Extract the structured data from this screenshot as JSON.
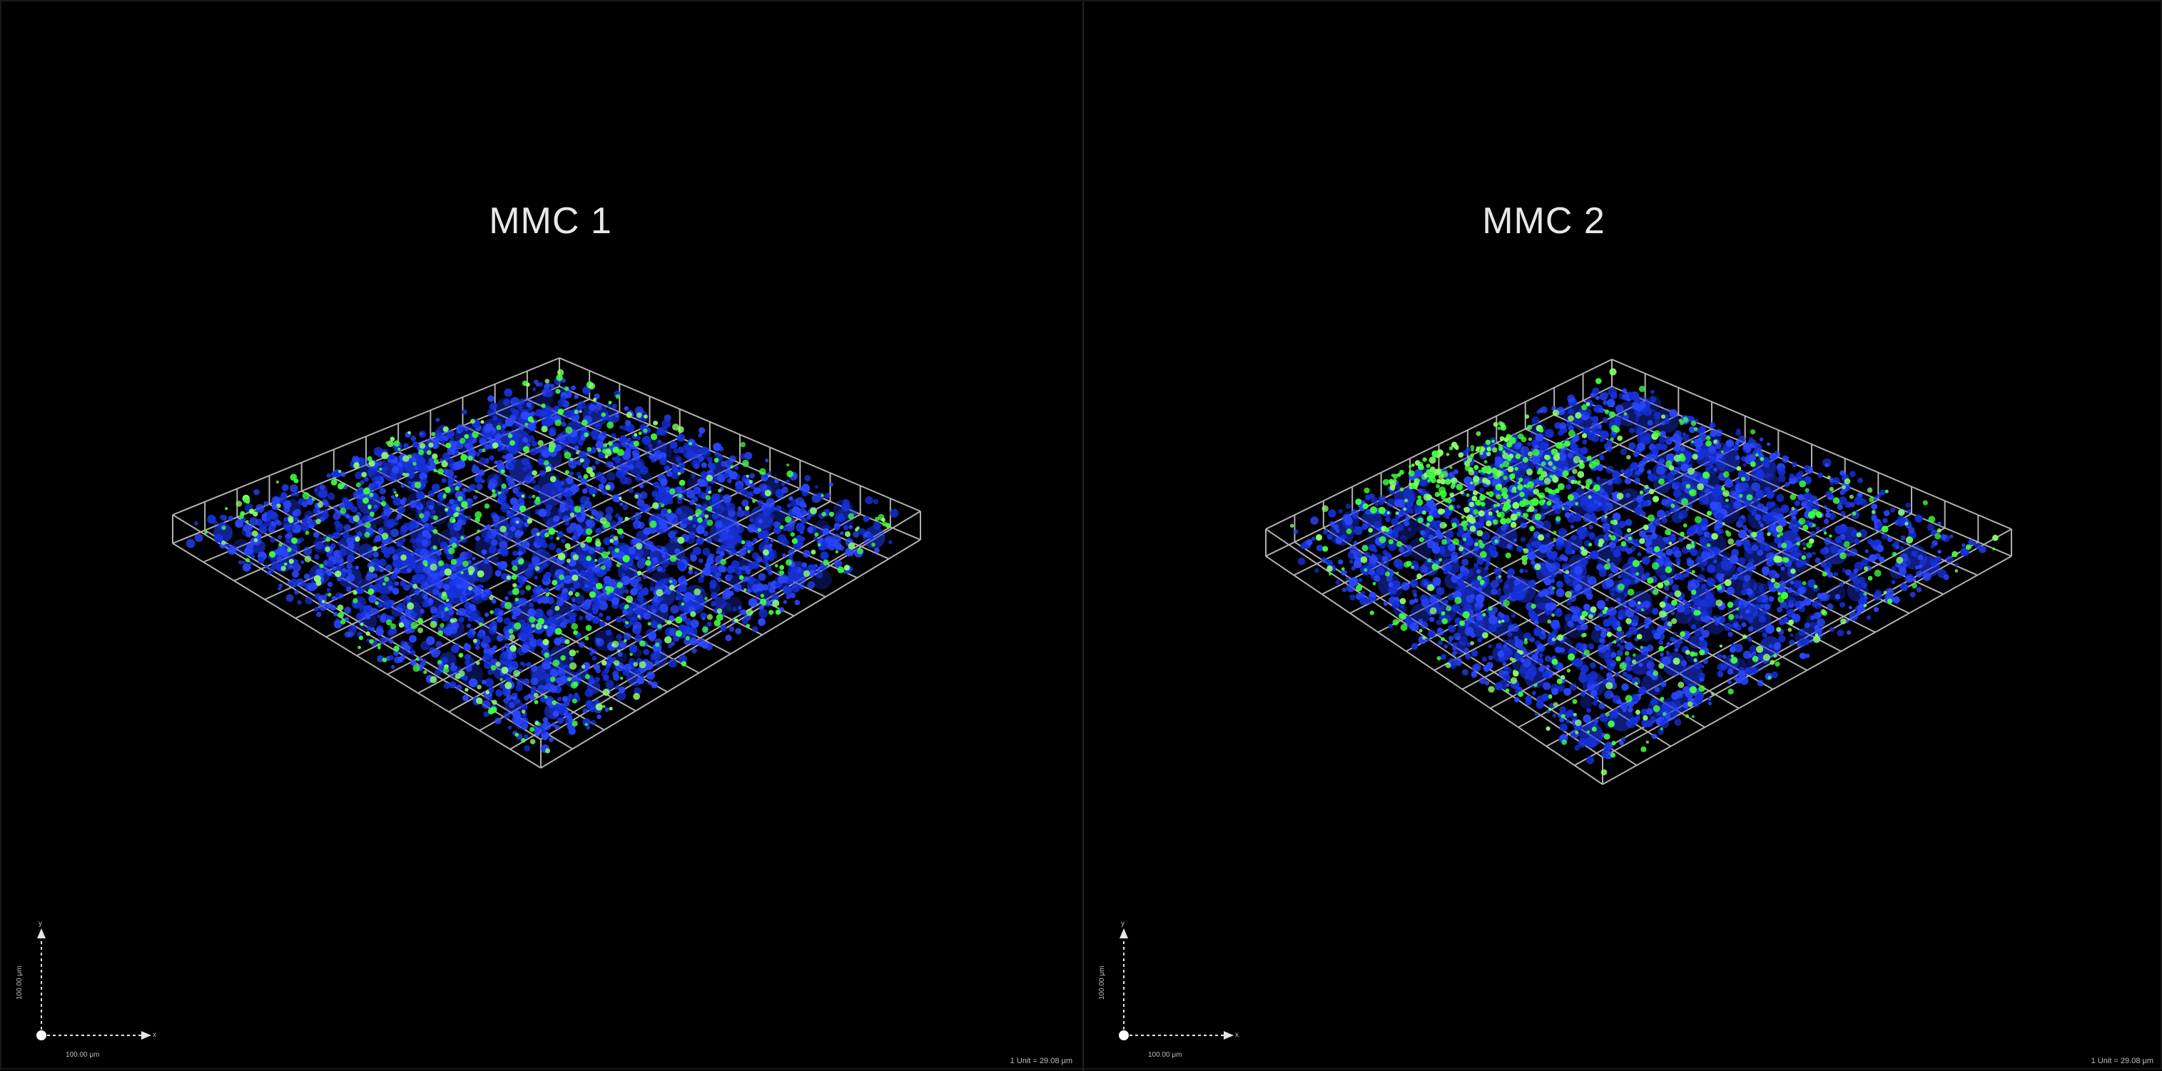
{
  "panels": [
    {
      "title": "MMC 1",
      "axis_x_tick": "x",
      "axis_y_tick": "y",
      "axis_x_length": "100.00 μm",
      "axis_y_length": "100.00 μm",
      "scale_readout": "1 Unit = 29.08 μm"
    },
    {
      "title": "MMC 2",
      "axis_x_tick": "x",
      "axis_y_tick": "y",
      "axis_x_length": "100.00 μm",
      "axis_y_length": "100.00 μm",
      "scale_readout": "1 Unit = 29.08 μm"
    }
  ],
  "colors": {
    "background": "#000000",
    "grid": "#d0d0d0",
    "nuclei_blue": "#1f3cff",
    "marker_green": "#3cff3c",
    "text": "#e8e8e8"
  }
}
